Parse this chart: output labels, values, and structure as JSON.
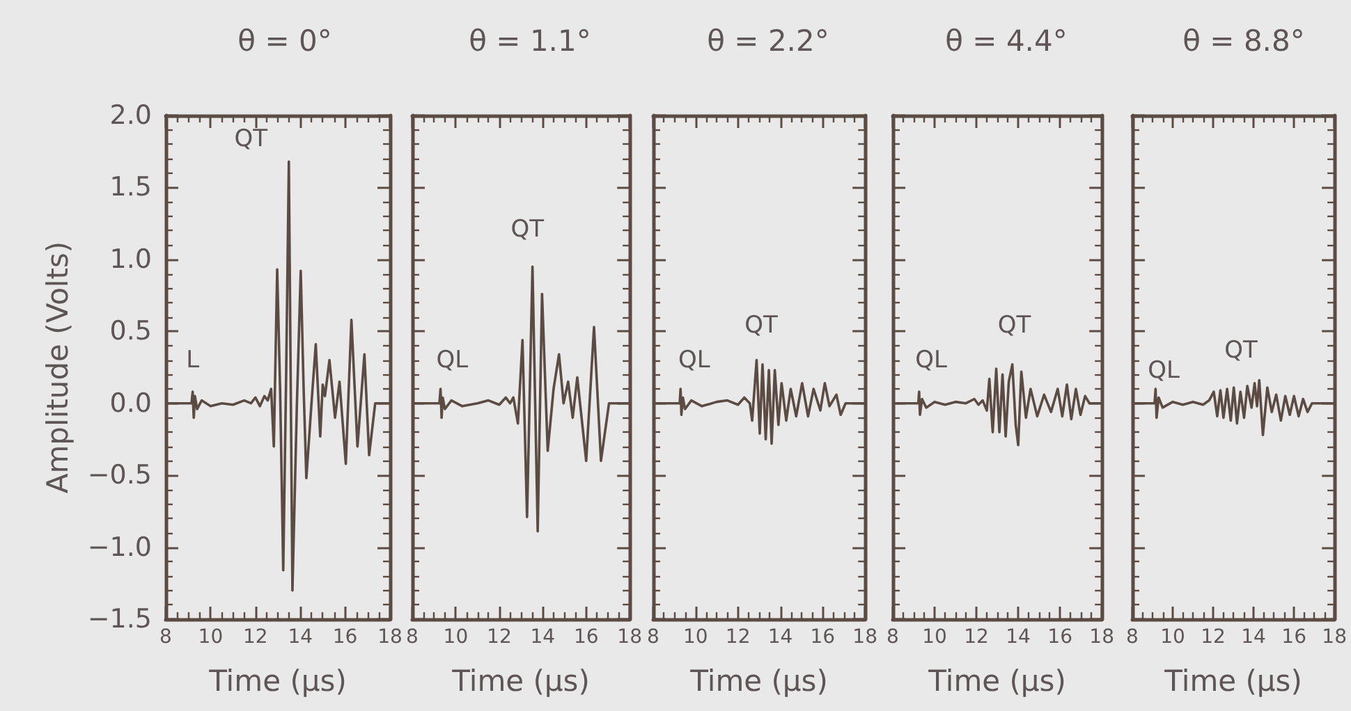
{
  "chart_data": [
    {
      "type": "line",
      "title": "θ = 0°",
      "xlabel": "Time (μs)",
      "ylabel": "Amplitude (Volts)",
      "color": "#5b4b43",
      "xlim": [
        8,
        18
      ],
      "xticks": [
        8,
        10,
        12,
        14,
        16,
        18
      ],
      "ylim": [
        -1.5,
        2.0
      ],
      "yticks": [
        {
          "value": -1.5,
          "label": "−1.5"
        },
        {
          "value": -1,
          "label": "−1.0"
        },
        {
          "value": -0.5,
          "label": "−0.5"
        },
        {
          "value": 0,
          "label": "0.0"
        },
        {
          "value": 0.5,
          "label": "0.5"
        },
        {
          "value": 1,
          "label": "1.0"
        },
        {
          "value": 1.5,
          "label": "1.5"
        },
        {
          "value": 2,
          "label": "2.0"
        }
      ],
      "annotations": [
        "L",
        "QT"
      ],
      "x": [
        8,
        9.15,
        9.2,
        9.25,
        9.3,
        9.4,
        9.6,
        10.0,
        10.5,
        11.0,
        11.5,
        11.8,
        12.0,
        12.2,
        12.4,
        12.55,
        12.7,
        12.82,
        12.97,
        13.1,
        13.24,
        13.37,
        13.49,
        13.57,
        13.65,
        13.85,
        14.02,
        14.15,
        14.27,
        14.5,
        14.69,
        14.89,
        15.0,
        15.1,
        15.3,
        15.55,
        15.75,
        16.03,
        16.28,
        16.55,
        16.86,
        17.07,
        17.34,
        18
      ],
      "values": [
        0,
        0,
        0.08,
        -0.1,
        0.05,
        -0.04,
        0.02,
        -0.02,
        0,
        -0.01,
        0.02,
        0,
        0.04,
        -0.02,
        0.05,
        0.02,
        0.1,
        -0.3,
        0.93,
        0.1,
        -1.16,
        0.2,
        1.68,
        0.2,
        -1.3,
        0,
        0.92,
        0.1,
        -0.52,
        0,
        0.41,
        -0.23,
        0.13,
        0.05,
        0.3,
        -0.1,
        0.15,
        -0.42,
        0.58,
        -0.3,
        0.34,
        -0.36,
        0,
        0
      ]
    },
    {
      "type": "line",
      "title": "θ = 1.1°",
      "xlabel": "Time (μs)",
      "color": "#5b4b43",
      "xlim": [
        8,
        18
      ],
      "xticks": [
        8,
        10,
        12,
        14,
        16,
        18
      ],
      "ylim": [
        -1.5,
        2.0
      ],
      "yticks": [
        {
          "value": -1.5,
          "label": null
        },
        {
          "value": -1,
          "label": null
        },
        {
          "value": -0.5,
          "label": null
        },
        {
          "value": 0,
          "label": null
        },
        {
          "value": 0.5,
          "label": null
        },
        {
          "value": 1,
          "label": null
        },
        {
          "value": 1.5,
          "label": null
        },
        {
          "value": 2,
          "label": null
        }
      ],
      "tick_labels": "x",
      "annotations": [
        "QL",
        "QT"
      ],
      "x": [
        8,
        9.25,
        9.3,
        9.35,
        9.4,
        9.5,
        9.8,
        10.3,
        11.0,
        11.5,
        12.0,
        12.3,
        12.5,
        12.65,
        12.86,
        13.07,
        13.28,
        13.53,
        13.77,
        13.97,
        14.23,
        14.5,
        14.75,
        14.96,
        15.17,
        15.38,
        15.59,
        16.0,
        16.36,
        16.68,
        17.05,
        18
      ],
      "values": [
        0,
        0,
        0.1,
        -0.1,
        0.04,
        -0.04,
        0.02,
        -0.02,
        0,
        0.02,
        -0.01,
        0.04,
        0,
        0.04,
        -0.14,
        0.44,
        -0.79,
        0.95,
        -0.89,
        0.76,
        -0.33,
        0.1,
        0.34,
        0,
        0.15,
        -0.1,
        0.18,
        -0.4,
        0.53,
        -0.4,
        0,
        0
      ]
    },
    {
      "type": "line",
      "title": "θ = 2.2°",
      "xlabel": "Time (μs)",
      "color": "#5b4b43",
      "xlim": [
        8,
        18
      ],
      "xticks": [
        8,
        10,
        12,
        14,
        16,
        18
      ],
      "ylim": [
        -1.5,
        2.0
      ],
      "yticks": [
        {
          "value": -1.5,
          "label": null
        },
        {
          "value": -1,
          "label": null
        },
        {
          "value": -0.5,
          "label": null
        },
        {
          "value": 0,
          "label": null
        },
        {
          "value": 0.5,
          "label": null
        },
        {
          "value": 1,
          "label": null
        },
        {
          "value": 1.5,
          "label": null
        },
        {
          "value": 2,
          "label": null
        }
      ],
      "tick_labels": "x",
      "annotations": [
        "QL",
        "QT"
      ],
      "x": [
        8,
        9.25,
        9.29,
        9.33,
        9.4,
        9.5,
        9.8,
        10.3,
        11.0,
        11.5,
        12.0,
        12.3,
        12.56,
        12.67,
        12.88,
        13.03,
        13.16,
        13.31,
        13.46,
        13.59,
        13.74,
        13.91,
        14.06,
        14.28,
        14.49,
        14.75,
        15.03,
        15.31,
        15.57,
        15.89,
        16.1,
        16.32,
        16.65,
        16.85,
        17.08,
        18
      ],
      "values": [
        0,
        0,
        0.1,
        -0.08,
        0.04,
        -0.04,
        0.02,
        -0.02,
        0.01,
        0.02,
        -0.01,
        0.04,
        0,
        -0.12,
        0.3,
        -0.21,
        0.27,
        -0.25,
        0.23,
        -0.28,
        0.23,
        -0.15,
        0.14,
        -0.12,
        0.1,
        -0.09,
        0.14,
        -0.09,
        0.1,
        -0.05,
        0.14,
        -0.02,
        0.06,
        -0.08,
        0,
        0
      ]
    },
    {
      "type": "line",
      "title": "θ = 4.4°",
      "xlabel": "Time (μs)",
      "color": "#5b4b43",
      "xlim": [
        8,
        18
      ],
      "xticks": [
        8,
        10,
        12,
        14,
        16,
        18
      ],
      "ylim": [
        -1.5,
        2.0
      ],
      "yticks": [
        {
          "value": -1.5,
          "label": null
        },
        {
          "value": -1,
          "label": null
        },
        {
          "value": -0.5,
          "label": null
        },
        {
          "value": 0,
          "label": null
        },
        {
          "value": 0.5,
          "label": null
        },
        {
          "value": 1,
          "label": null
        },
        {
          "value": 1.5,
          "label": null
        },
        {
          "value": 2,
          "label": null
        }
      ],
      "tick_labels": "x",
      "annotations": [
        "QL",
        "QT"
      ],
      "x": [
        8,
        9.22,
        9.26,
        9.3,
        9.4,
        9.6,
        10.0,
        10.5,
        11.0,
        11.5,
        11.9,
        12.1,
        12.3,
        12.5,
        12.62,
        12.78,
        12.95,
        13.1,
        13.25,
        13.4,
        13.55,
        13.72,
        13.88,
        14.0,
        14.15,
        14.37,
        14.59,
        14.91,
        15.24,
        15.57,
        15.89,
        16.11,
        16.33,
        16.54,
        16.76,
        16.98,
        17.2,
        17.41,
        18
      ],
      "values": [
        0,
        0,
        0.08,
        -0.08,
        0.03,
        -0.03,
        0.01,
        -0.01,
        0.01,
        0,
        0.03,
        -0.01,
        0.02,
        -0.05,
        0.17,
        -0.2,
        0.24,
        -0.2,
        0.2,
        -0.23,
        0.15,
        0.27,
        -0.15,
        -0.29,
        0.22,
        -0.1,
        0.1,
        -0.09,
        0.06,
        -0.06,
        0.1,
        -0.09,
        0.13,
        -0.11,
        0.1,
        -0.08,
        0.05,
        0,
        0
      ]
    },
    {
      "type": "line",
      "title": "θ = 8.8°",
      "xlabel": "Time (μs)",
      "color": "#5b4b43",
      "xlim": [
        8,
        18
      ],
      "xticks": [
        8,
        10,
        12,
        14,
        16,
        18
      ],
      "ylim": [
        -1.5,
        2.0
      ],
      "yticks": [
        {
          "value": -1.5,
          "label": null
        },
        {
          "value": -1,
          "label": null
        },
        {
          "value": -0.5,
          "label": null
        },
        {
          "value": 0,
          "label": null
        },
        {
          "value": 0.5,
          "label": null
        },
        {
          "value": 1,
          "label": null
        },
        {
          "value": 1.5,
          "label": null
        },
        {
          "value": 2,
          "label": null
        }
      ],
      "tick_labels": "x",
      "annotations": [
        "QL",
        "QT"
      ],
      "x": [
        8,
        9.1,
        9.15,
        9.2,
        9.3,
        9.5,
        10.0,
        10.5,
        11.0,
        11.5,
        11.8,
        12.03,
        12.2,
        12.36,
        12.51,
        12.69,
        12.87,
        13.02,
        13.18,
        13.35,
        13.53,
        13.69,
        13.9,
        14.05,
        14.17,
        14.28,
        14.46,
        14.68,
        14.9,
        15.12,
        15.35,
        15.57,
        15.79,
        16.0,
        16.23,
        16.45,
        16.67,
        16.89,
        18
      ],
      "values": [
        0,
        0,
        0.1,
        -0.1,
        0.04,
        -0.03,
        0.01,
        -0.01,
        0.01,
        -0.01,
        0.02,
        0.08,
        -0.09,
        0.09,
        -0.1,
        0.1,
        -0.12,
        0.11,
        -0.14,
        0.08,
        -0.1,
        0.12,
        -0.03,
        0.14,
        -0.02,
        0.16,
        -0.22,
        0.11,
        -0.06,
        0.06,
        -0.12,
        0.05,
        -0.08,
        0.05,
        -0.09,
        0.03,
        -0.06,
        0,
        0
      ]
    }
  ]
}
